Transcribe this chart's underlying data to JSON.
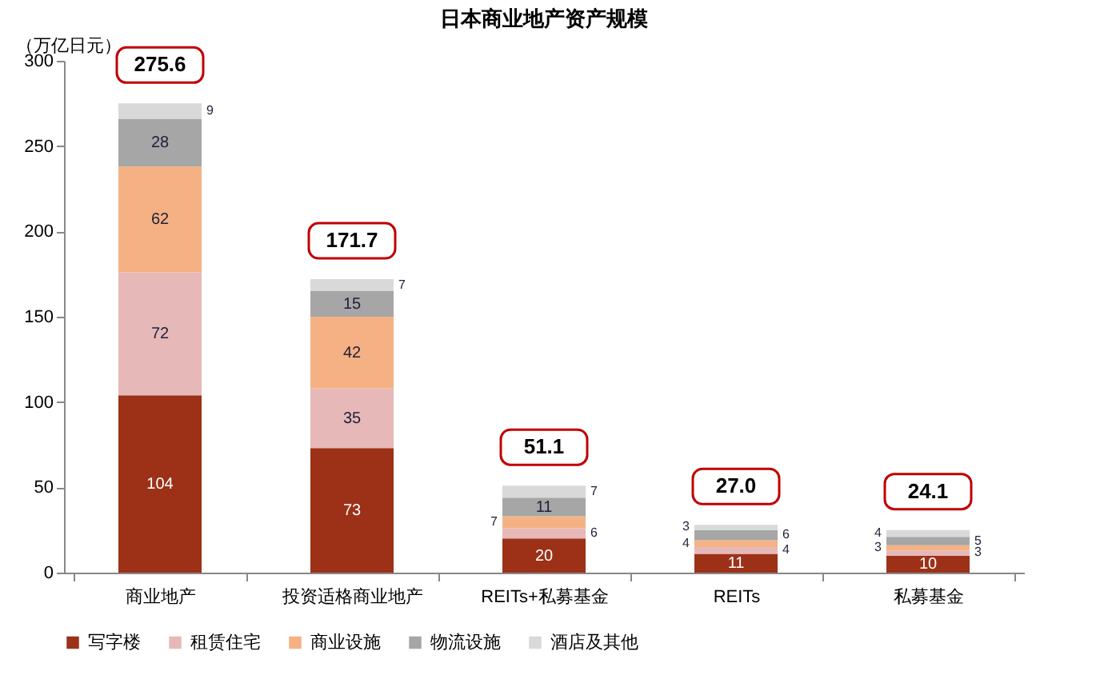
{
  "chart_data": {
    "type": "bar",
    "title": "日本商业地产资产规模",
    "ylabel": "（万亿日元）",
    "stacked": true,
    "data_labels": true,
    "legend": "bottom",
    "grid": false,
    "categories": [
      "商业地产",
      "投资适格商业地产",
      "REITs+私募基金",
      "REITs",
      "私募基金"
    ],
    "series": [
      {
        "name": "写字楼",
        "color": "#9c3118",
        "values": [
          104,
          73,
          20,
          11,
          10
        ]
      },
      {
        "name": "租赁住宅",
        "color": "#e6b9b8",
        "values": [
          72,
          35,
          6,
          4,
          3
        ]
      },
      {
        "name": "商业设施",
        "color": "#f5b183",
        "values": [
          62,
          42,
          7,
          4,
          3
        ]
      },
      {
        "name": "物流设施",
        "color": "#a6a6a6",
        "values": [
          28,
          15,
          11,
          6,
          5
        ]
      },
      {
        "name": "酒店及其他",
        "color": "#d9d9d9",
        "values": [
          9,
          7,
          7,
          3,
          4
        ]
      }
    ],
    "annotations": [
      {
        "text": "275.6",
        "x": "商业地产",
        "y": 275
      },
      {
        "text": "171.7",
        "x": "投资适格商业地产",
        "y": 172
      },
      {
        "text": "51.1",
        "x": "REITs+私募基金",
        "y": 51
      },
      {
        "text": "27.0",
        "x": "REITs",
        "y": 28
      },
      {
        "text": "24.1",
        "x": "私募基金",
        "y": 25
      }
    ],
    "ylim": [
      0,
      300
    ],
    "yticks": [
      0,
      50,
      100,
      150,
      200,
      250,
      300
    ]
  }
}
